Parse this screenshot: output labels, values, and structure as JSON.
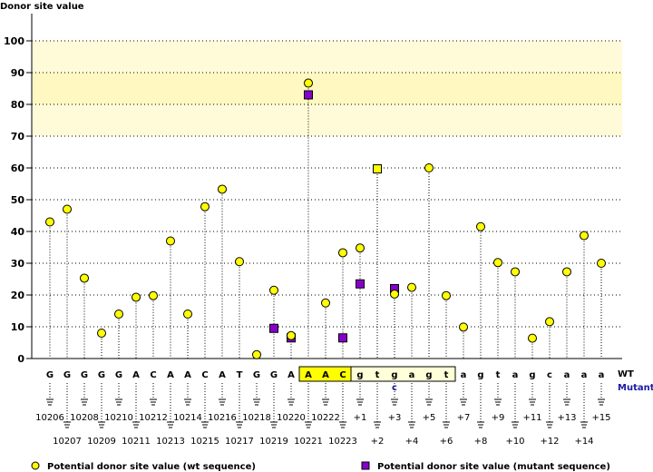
{
  "chart_data": {
    "type": "scatter",
    "title": "Donor site value",
    "ylabel": "Donor site value",
    "ylim": [
      0,
      100
    ],
    "yticks": [
      "0",
      "10",
      "20",
      "30",
      "40",
      "50",
      "60",
      "70",
      "80",
      "90",
      "100"
    ],
    "highlight_band": [
      70,
      100
    ],
    "row_labels": {
      "wt": "WT",
      "mutant": "Mutant"
    },
    "bases": [
      "G",
      "G",
      "G",
      "G",
      "G",
      "A",
      "C",
      "A",
      "A",
      "C",
      "A",
      "T",
      "G",
      "G",
      "A",
      "A",
      "A",
      "C",
      "g",
      "t",
      "g",
      "a",
      "g",
      "t",
      "a",
      "g",
      "t",
      "a",
      "g",
      "c",
      "a",
      "a",
      "a"
    ],
    "positions": [
      "10206",
      "10207",
      "10208",
      "10209",
      "10210",
      "10211",
      "10212",
      "10213",
      "10214",
      "10215",
      "10216",
      "10217",
      "10218",
      "10219",
      "10220",
      "10221",
      "10222",
      "10223",
      "+1",
      "+2",
      "+3",
      "+4",
      "+5",
      "+6",
      "+7",
      "+8",
      "+9",
      "+10",
      "+11",
      "+12",
      "+13",
      "+14",
      "+15"
    ],
    "exon_box": [
      15,
      17
    ],
    "intron_box": [
      18,
      23
    ],
    "mutant_bases": {
      "20": "c"
    },
    "series": [
      {
        "name": "Potential donor site value (wt sequence)",
        "marker": "circle",
        "color": "#ffff00",
        "values": [
          43,
          47,
          25.3,
          8,
          14,
          19.3,
          19.8,
          37,
          14,
          47.8,
          53.3,
          30.5,
          1.2,
          21.5,
          7.2,
          86.7,
          17.5,
          33.3,
          34.8,
          59.7,
          20.3,
          22.4,
          60,
          19.8,
          9.9,
          41.5,
          30.2,
          27.3,
          6.4,
          11.6,
          27.3,
          38.7,
          30
        ]
      },
      {
        "name": "Potential donor site value (mutant sequence)",
        "marker": "square",
        "color": "#8800cc",
        "values": [
          null,
          null,
          null,
          null,
          null,
          null,
          null,
          null,
          null,
          null,
          null,
          null,
          null,
          9.5,
          6.5,
          83,
          null,
          6.5,
          23.5,
          59.7,
          22,
          null,
          null,
          null,
          null,
          null,
          null,
          null,
          null,
          null,
          null,
          null,
          null
        ]
      }
    ],
    "legend": [
      "Potential donor site value (wt sequence)",
      "Potential donor site value (mutant sequence)"
    ]
  }
}
